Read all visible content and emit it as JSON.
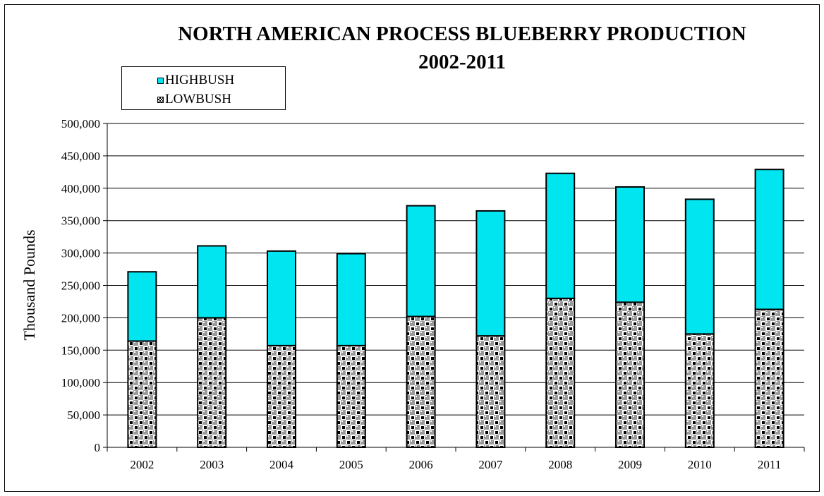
{
  "chart_data": {
    "type": "bar",
    "stacked": true,
    "title": "NORTH AMERICAN PROCESS BLUEBERRY PRODUCTION",
    "subtitle": "2002-2011",
    "ylabel": "Thousand Pounds",
    "xlabel": "",
    "ylim": [
      0,
      500000
    ],
    "yticks": [
      "0",
      "50,000",
      "100,000",
      "150,000",
      "200,000",
      "250,000",
      "300,000",
      "350,000",
      "400,000",
      "450,000",
      "500,000"
    ],
    "grid": true,
    "legend_position": "top-left",
    "categories": [
      "2002",
      "2003",
      "2004",
      "2005",
      "2006",
      "2007",
      "2008",
      "2009",
      "2010",
      "2011"
    ],
    "series": [
      {
        "name": "LOWBUSH",
        "pattern": "checkered",
        "color": "#000000",
        "values": [
          164000,
          200000,
          157000,
          157000,
          202000,
          172000,
          230000,
          224000,
          175000,
          213000
        ]
      },
      {
        "name": "HIGHBUSH",
        "color": "#00E5F0",
        "values": [
          107000,
          111000,
          146000,
          142000,
          171000,
          193000,
          193000,
          178000,
          208000,
          216000
        ]
      }
    ]
  }
}
